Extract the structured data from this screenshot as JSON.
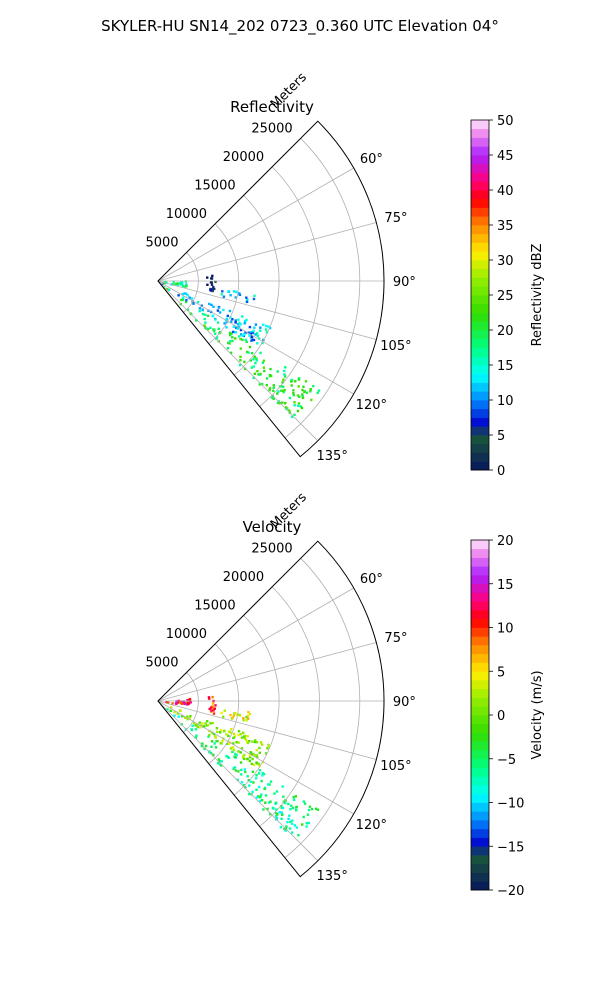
{
  "figure": {
    "suptitle": "SKYLER-HU  SN14_202  0723_0.360 UTC Elevation 04°"
  },
  "chart_data": [
    {
      "type": "heatmap",
      "subtype": "polar-sector",
      "title": "Reflectivity",
      "radial_axis_label": "Meters",
      "radial_ticks": [
        5000,
        10000,
        15000,
        20000,
        25000
      ],
      "radial_tick_labels": [
        "5000",
        "10000",
        "15000",
        "20000",
        "25000"
      ],
      "radial_range": [
        0,
        28000
      ],
      "azimuth_ticks": [
        60,
        75,
        90,
        105,
        120,
        135
      ],
      "azimuth_tick_labels": [
        "60°",
        "75°",
        "90°",
        "105°",
        "120°",
        "135°"
      ],
      "azimuth_range": [
        45,
        141
      ],
      "grid": true,
      "colorbar": {
        "label": "Reflectivity dBZ",
        "range": [
          0,
          50
        ],
        "ticks": [
          0,
          5,
          10,
          15,
          20,
          25,
          30,
          35,
          40,
          45,
          50
        ],
        "tick_labels": [
          "0",
          "5",
          "10",
          "15",
          "20",
          "25",
          "30",
          "35",
          "40",
          "45",
          "50"
        ]
      },
      "echo_regions": [
        {
          "az": [
            124,
            136
          ],
          "r": [
            0,
            24000
          ],
          "value": 20
        },
        {
          "az": [
            112,
            124
          ],
          "r": [
            0,
            15000
          ],
          "value": 12
        },
        {
          "az": [
            97,
            103
          ],
          "r": [
            7000,
            12000
          ],
          "value": 12
        },
        {
          "az": [
            83,
            102
          ],
          "r": [
            5500,
            7000
          ],
          "value": 3
        },
        {
          "az": [
            88,
            100
          ],
          "r": [
            0,
            3500
          ],
          "value": 17
        }
      ]
    },
    {
      "type": "heatmap",
      "subtype": "polar-sector",
      "title": "Velocity",
      "radial_axis_label": "Meters",
      "radial_ticks": [
        5000,
        10000,
        15000,
        20000,
        25000
      ],
      "radial_tick_labels": [
        "5000",
        "10000",
        "15000",
        "20000",
        "25000"
      ],
      "radial_range": [
        0,
        28000
      ],
      "azimuth_ticks": [
        60,
        75,
        90,
        105,
        120,
        135
      ],
      "azimuth_tick_labels": [
        "60°",
        "75°",
        "90°",
        "105°",
        "120°",
        "135°"
      ],
      "azimuth_range": [
        45,
        141
      ],
      "grid": true,
      "colorbar": {
        "label": "Velocity (m/s)",
        "range": [
          -20,
          20
        ],
        "ticks": [
          -20,
          -15,
          -10,
          -5,
          0,
          5,
          10,
          15,
          20
        ],
        "tick_labels": [
          "−20",
          "−15",
          "−10",
          "−5",
          "0",
          "5",
          "10",
          "15",
          "20"
        ]
      },
      "echo_regions": [
        {
          "az": [
            124,
            136
          ],
          "r": [
            0,
            24000
          ],
          "value": -6
        },
        {
          "az": [
            110,
            124
          ],
          "r": [
            0,
            15000
          ],
          "value": 1
        },
        {
          "az": [
            96,
            104
          ],
          "r": [
            7000,
            11500
          ],
          "value": 4
        },
        {
          "az": [
            83,
            102
          ],
          "r": [
            5500,
            7000
          ],
          "value": 10
        },
        {
          "az": [
            84,
            96
          ],
          "r": [
            0,
            4000
          ],
          "value": 12
        }
      ]
    }
  ]
}
